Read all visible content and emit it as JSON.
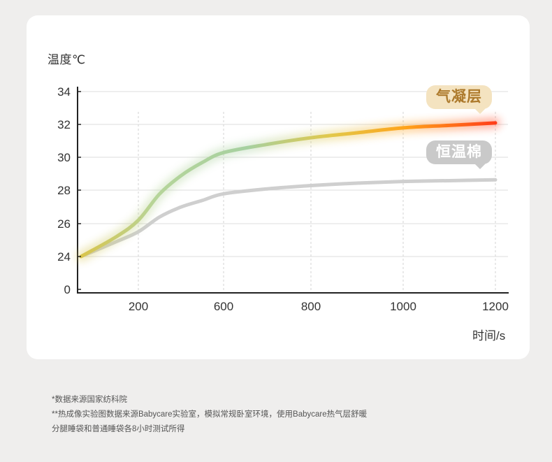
{
  "chart_data": {
    "type": "line",
    "ylabel": "温度℃",
    "xlabel": "时间/s",
    "x_ticks": [
      200,
      600,
      800,
      1000,
      1200
    ],
    "y_ticks": [
      0,
      24,
      26,
      28,
      30,
      32,
      34
    ],
    "series": [
      {
        "name": "气凝层",
        "color": "#e8392b",
        "gradient": [
          "#d9c44b",
          "#a9d29a",
          "#d8c94a",
          "#ffa41a",
          "#ff4a1a"
        ],
        "points": [
          [
            70,
            24.0
          ],
          [
            150,
            25.2
          ],
          [
            200,
            26.2
          ],
          [
            300,
            27.8
          ],
          [
            400,
            28.9
          ],
          [
            500,
            29.7
          ],
          [
            600,
            30.3
          ],
          [
            700,
            30.8
          ],
          [
            800,
            31.2
          ],
          [
            900,
            31.5
          ],
          [
            1000,
            31.8
          ],
          [
            1100,
            31.95
          ],
          [
            1200,
            32.1
          ]
        ]
      },
      {
        "name": "恒温棉",
        "color": "#cfcfcf",
        "points": [
          [
            70,
            24.0
          ],
          [
            150,
            24.9
          ],
          [
            200,
            25.5
          ],
          [
            300,
            26.4
          ],
          [
            400,
            27.0
          ],
          [
            500,
            27.4
          ],
          [
            600,
            27.8
          ],
          [
            700,
            28.1
          ],
          [
            800,
            28.3
          ],
          [
            900,
            28.45
          ],
          [
            1000,
            28.55
          ],
          [
            1100,
            28.6
          ],
          [
            1200,
            28.65
          ]
        ]
      }
    ],
    "grid": true
  },
  "notes": [
    "*数据来源国家纺科院",
    "**热成像实验图数据来源Babycare实验室，模拟常规卧室环境，使用Babycare热气层舒暖",
    "分腿睡袋和普通睡袋各8小时测试所得"
  ]
}
